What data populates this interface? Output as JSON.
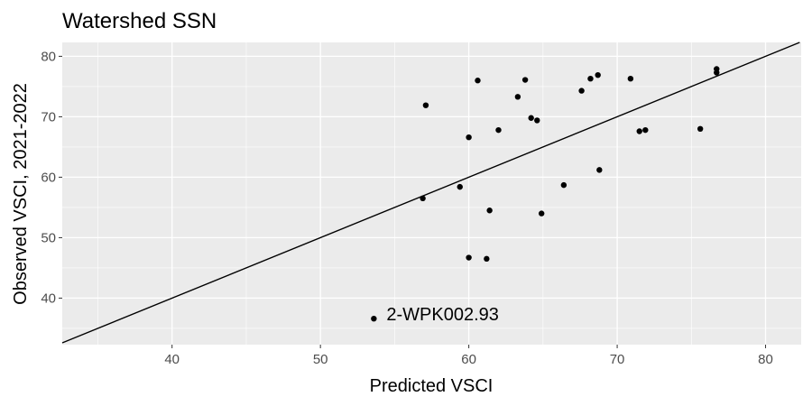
{
  "chart_data": {
    "type": "scatter",
    "title": "Watershed SSN",
    "xlabel": "Predicted VSCI",
    "ylabel": "Observed VSCI, 2021-2022",
    "xlim": [
      32.6,
      82.4
    ],
    "ylim": [
      32.3,
      82.3
    ],
    "x_ticks": [
      40,
      50,
      60,
      70,
      80
    ],
    "y_ticks": [
      40,
      50,
      60,
      70,
      80
    ],
    "grid": true,
    "background_color": "#ebebeb",
    "grid_color": "#ffffff",
    "point_color": "#000000",
    "reference_line": {
      "type": "identity",
      "slope": 1,
      "intercept": 0,
      "color": "#000000"
    },
    "points": [
      {
        "x": 53.6,
        "y": 36.6
      },
      {
        "x": 56.9,
        "y": 56.5
      },
      {
        "x": 57.1,
        "y": 71.9
      },
      {
        "x": 59.4,
        "y": 58.4
      },
      {
        "x": 60.0,
        "y": 66.6
      },
      {
        "x": 60.0,
        "y": 46.7
      },
      {
        "x": 60.6,
        "y": 76.0
      },
      {
        "x": 61.2,
        "y": 46.5
      },
      {
        "x": 61.4,
        "y": 54.5
      },
      {
        "x": 62.0,
        "y": 67.8
      },
      {
        "x": 63.3,
        "y": 73.3
      },
      {
        "x": 63.8,
        "y": 76.1
      },
      {
        "x": 64.2,
        "y": 69.8
      },
      {
        "x": 64.6,
        "y": 69.4
      },
      {
        "x": 64.9,
        "y": 54.0
      },
      {
        "x": 66.4,
        "y": 58.7
      },
      {
        "x": 67.6,
        "y": 74.3
      },
      {
        "x": 68.2,
        "y": 76.3
      },
      {
        "x": 68.7,
        "y": 76.9
      },
      {
        "x": 68.8,
        "y": 61.2
      },
      {
        "x": 70.9,
        "y": 76.3
      },
      {
        "x": 71.5,
        "y": 67.6
      },
      {
        "x": 71.9,
        "y": 67.8
      },
      {
        "x": 75.6,
        "y": 68.0
      },
      {
        "x": 76.7,
        "y": 77.9
      },
      {
        "x": 76.7,
        "y": 77.3
      }
    ],
    "annotations": [
      {
        "text": "2-WPK002.93",
        "x": 53.6,
        "y": 36.6
      }
    ]
  }
}
